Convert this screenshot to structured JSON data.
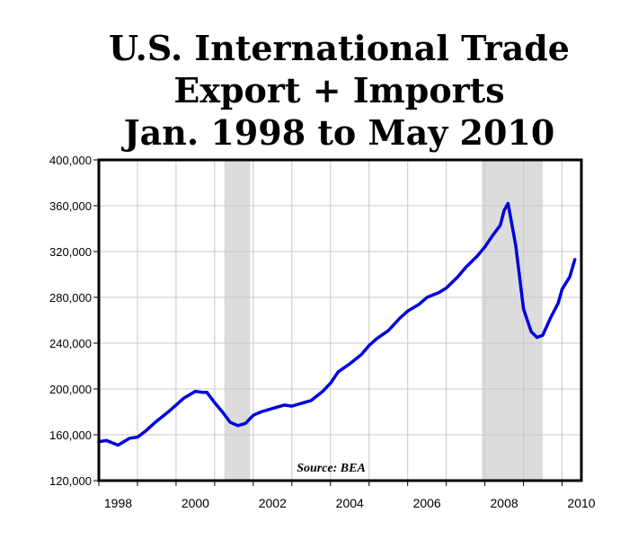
{
  "chart_data": {
    "type": "line",
    "title": [
      "U.S. International Trade",
      "Export + Imports",
      "Jan. 1998 to May 2010"
    ],
    "annotation": "Source: BEA",
    "ylim": [
      120000,
      400000
    ],
    "xlim": [
      1998.0,
      2010.5
    ],
    "y_ticks": [
      120000,
      160000,
      200000,
      240000,
      280000,
      320000,
      360000,
      400000
    ],
    "y_tick_labels": [
      "120,000",
      "160,000",
      "200,000",
      "240,000",
      "280,000",
      "320,000",
      "360,000",
      "400,000"
    ],
    "x_tick_labels": [
      "1998",
      "2000",
      "2002",
      "2004",
      "2006",
      "2008",
      "2010"
    ],
    "x_tick_positions": [
      1998.5,
      2000.5,
      2002.5,
      2004.5,
      2006.5,
      2008.5,
      2010.5
    ],
    "grid": true,
    "recession_bands": [
      [
        2001.25,
        2001.92
      ],
      [
        2007.92,
        2009.5
      ]
    ],
    "line_color": "#0000dd",
    "band_color": "#dcdcdc",
    "series": [
      {
        "x": [
          1998.0,
          1998.2,
          1998.5,
          1998.8,
          1999.0,
          1999.2,
          1999.5,
          1999.8,
          2000.0,
          2000.2,
          2000.5,
          2000.7,
          2000.8,
          2001.0,
          2001.2,
          2001.4,
          2001.6,
          2001.8,
          2002.0,
          2002.2,
          2002.5,
          2002.8,
          2003.0,
          2003.2,
          2003.5,
          2003.8,
          2004.0,
          2004.2,
          2004.5,
          2004.8,
          2005.0,
          2005.2,
          2005.5,
          2005.8,
          2006.0,
          2006.3,
          2006.5,
          2006.8,
          2007.0,
          2007.3,
          2007.5,
          2007.8,
          2008.0,
          2008.2,
          2008.4,
          2008.5,
          2008.6,
          2008.8,
          2009.0,
          2009.2,
          2009.35,
          2009.5,
          2009.7,
          2009.9,
          2010.0,
          2010.2,
          2010.33
        ],
        "y": [
          154000,
          155000,
          151000,
          157000,
          158000,
          163000,
          172000,
          180000,
          186000,
          192000,
          198000,
          197000,
          197000,
          188000,
          180000,
          171000,
          168000,
          170000,
          177000,
          180000,
          183000,
          186000,
          185000,
          187000,
          190000,
          198000,
          205000,
          215000,
          222000,
          230000,
          238000,
          244000,
          251000,
          262000,
          268000,
          274000,
          280000,
          284000,
          288000,
          298000,
          306000,
          316000,
          324000,
          334000,
          343000,
          356000,
          362000,
          325000,
          270000,
          250000,
          245000,
          247000,
          262000,
          275000,
          287000,
          298000,
          313000
        ]
      }
    ]
  }
}
